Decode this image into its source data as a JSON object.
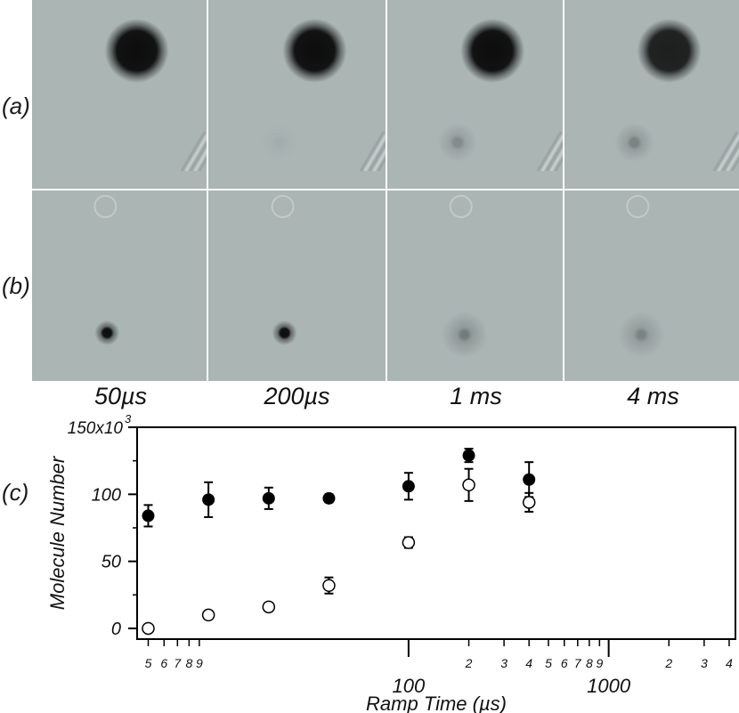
{
  "panel_labels": {
    "a": "(a)",
    "b": "(b)",
    "c": "(c)"
  },
  "frames": {
    "labels": [
      "50µs",
      "200µs",
      "1 ms",
      "4 ms"
    ],
    "row_a": [
      {
        "big_spot": 1.0,
        "small_spot": 0.0
      },
      {
        "big_spot": 1.0,
        "small_spot": 0.05
      },
      {
        "big_spot": 1.0,
        "small_spot": 0.25
      },
      {
        "big_spot": 0.9,
        "small_spot": 0.3
      }
    ],
    "row_b": [
      {
        "spot": 1.0,
        "spread": 0.25
      },
      {
        "spot": 1.0,
        "spread": 0.25
      },
      {
        "spot": 0.35,
        "spread": 1.0
      },
      {
        "spot": 0.3,
        "spread": 1.0
      }
    ],
    "colors": {
      "background": "#aab5b4",
      "dark": "#0d0d0d"
    }
  },
  "chart_data": {
    "type": "scatter",
    "xlabel": "Ramp Time (µs)",
    "ylabel": "Molecule Number",
    "y_multiplier_label": "150x10",
    "y_multiplier_exp": "3",
    "xscale": "log",
    "xlim": [
      4.4,
      4300
    ],
    "ylim": [
      -8,
      150
    ],
    "x_major_ticks": [
      {
        "value": 100,
        "label": "100"
      },
      {
        "value": 1000,
        "label": "1000"
      }
    ],
    "x_minor_ticks": [
      {
        "value": 5,
        "label": "5"
      },
      {
        "value": 6,
        "label": "6"
      },
      {
        "value": 7,
        "label": "7"
      },
      {
        "value": 8,
        "label": "8"
      },
      {
        "value": 9,
        "label": "9"
      },
      {
        "value": 200,
        "label": "2"
      },
      {
        "value": 300,
        "label": "3"
      },
      {
        "value": 400,
        "label": "4"
      },
      {
        "value": 500,
        "label": "5"
      },
      {
        "value": 600,
        "label": "6"
      },
      {
        "value": 700,
        "label": "7"
      },
      {
        "value": 800,
        "label": "8"
      },
      {
        "value": 900,
        "label": "9"
      },
      {
        "value": 2000,
        "label": "2"
      },
      {
        "value": 3000,
        "label": "3"
      },
      {
        "value": 4000,
        "label": "4"
      }
    ],
    "y_ticks": [
      {
        "value": 0,
        "label": "0"
      },
      {
        "value": 50,
        "label": "50"
      },
      {
        "value": 100,
        "label": "100"
      },
      {
        "value": 150,
        "label": ""
      }
    ],
    "series": [
      {
        "marker": "filled-circle",
        "points": [
          {
            "x": 5,
            "y": 84,
            "err": 8
          },
          {
            "x": 10,
            "y": 96,
            "err": 13
          },
          {
            "x": 20,
            "y": 97,
            "err": 8
          },
          {
            "x": 40,
            "y": 97,
            "err": 3
          },
          {
            "x": 100,
            "y": 106,
            "err": 10
          },
          {
            "x": 200,
            "y": 129,
            "err": 5
          },
          {
            "x": 400,
            "y": 111,
            "err": 13
          }
        ]
      },
      {
        "marker": "open-circle",
        "points": [
          {
            "x": 5,
            "y": 0,
            "err": 2
          },
          {
            "x": 10,
            "y": 10,
            "err": 3
          },
          {
            "x": 20,
            "y": 16,
            "err": 3
          },
          {
            "x": 40,
            "y": 32,
            "err": 6
          },
          {
            "x": 100,
            "y": 64,
            "err": 4
          },
          {
            "x": 200,
            "y": 107,
            "err": 12
          },
          {
            "x": 400,
            "y": 94,
            "err": 7
          }
        ]
      }
    ]
  }
}
